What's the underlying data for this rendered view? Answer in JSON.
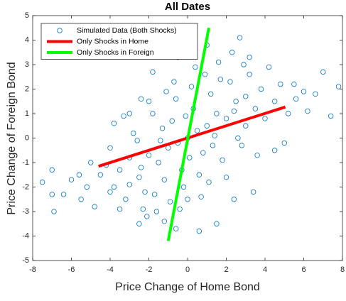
{
  "chart_data": {
    "type": "scatter",
    "title": "All Dates",
    "xlabel": "Price Change of Home Bond",
    "ylabel": "Price Change of Foreign Bond",
    "xlim": [
      -8,
      8
    ],
    "ylim": [
      -5,
      5
    ],
    "xticks": [
      -8,
      -6,
      -4,
      -2,
      0,
      2,
      4,
      6,
      8
    ],
    "yticks": [
      -5,
      -4,
      -3,
      -2,
      -1,
      0,
      1,
      2,
      3,
      4,
      5
    ],
    "grid": false,
    "legend": "northwest",
    "series": [
      {
        "name": "Simulated Data (Both Shocks)",
        "type": "scatter",
        "color": "#0072bd",
        "x": [
          0,
          0.5,
          -0.5,
          1,
          -1,
          1.5,
          -1.5,
          2,
          -2,
          0.3,
          -0.3,
          0.8,
          -0.8,
          1.2,
          -1.2,
          2.5,
          -2.5,
          3,
          -3,
          0.2,
          -0.2,
          1.8,
          -1.8,
          2.2,
          -2.2,
          3.5,
          -3.5,
          0.6,
          -0.6,
          1.4,
          -1.4,
          2.8,
          -2.8,
          0.9,
          -0.9,
          3.8,
          -3.8,
          1.1,
          -1.1,
          4.0,
          -4.2,
          2.0,
          -2.0,
          0.4,
          -0.4,
          3.2,
          -3.2,
          1.7,
          -1.7,
          4.5,
          -4.5,
          2.6,
          -2.6,
          0.1,
          -0.1,
          1.3,
          -1.3,
          2.4,
          -2.4,
          3.0,
          -3.0,
          5.2,
          -5.0,
          4.8,
          -4.0,
          1.6,
          -1.6,
          3.6,
          -3.3,
          0.7,
          -0.7,
          2.9,
          -2.3,
          5.6,
          -5.2,
          7.4,
          7.0,
          7.8,
          6.6,
          6.0,
          5.5,
          6.2,
          -7.5,
          -7.0,
          -7.0,
          -6.9,
          -6.4,
          -6.0,
          -5.5,
          -5.6,
          -4.8,
          -4.0,
          -3.8,
          -3.0,
          -2.4,
          -1.8,
          -0.5,
          1.0,
          2.3,
          2.7,
          3.2,
          4.2,
          1.5,
          0.6,
          -0.6,
          -1.2,
          -2.5,
          -2.1,
          2.4,
          3.4,
          4.5,
          5.0,
          0,
          -3.5
        ],
        "values": [
          0,
          0.3,
          -0.2,
          0.5,
          -0.4,
          1,
          -1,
          0.8,
          -0.7,
          1.2,
          -1.3,
          -0.6,
          0.7,
          1.8,
          -1.7,
          1.5,
          -1.6,
          0.5,
          -0.8,
          2.1,
          -2.0,
          -0.9,
          1.0,
          2.3,
          -2.2,
          1.2,
          -1.3,
          -1.5,
          1.6,
          0.1,
          -0.1,
          -0.3,
          0.2,
          2.6,
          -2.6,
          2.0,
          -2.0,
          -1.8,
          1.9,
          0.8,
          -1.1,
          -1.6,
          1.5,
          2.9,
          -2.9,
          2.6,
          -2.5,
          2.4,
          -2.3,
          1.5,
          -1.5,
          0.0,
          -0.1,
          -0.8,
          0.9,
          -0.3,
          0.4,
          1.1,
          -1.2,
          1.7,
          -1.9,
          1.0,
          -1.0,
          2.2,
          -2.2,
          3.1,
          -3.0,
          -0.7,
          0.9,
          -2.4,
          2.3,
          3.0,
          -2.9,
          1.6,
          -2.0,
          0.9,
          2.7,
          2.1,
          1.8,
          1.9,
          2.2,
          1.1,
          -1.8,
          -1.3,
          -2.3,
          -3.0,
          -2.3,
          -1.7,
          -2.5,
          -1.5,
          -2.8,
          -0.4,
          0.6,
          1.0,
          1.6,
          2.7,
          3.3,
          3.8,
          3.5,
          4.1,
          3.3,
          2.9,
          -3.5,
          -3.8,
          -3.7,
          -3.4,
          -3.5,
          -3.2,
          -2.5,
          -2.2,
          -0.5,
          -0.2,
          -2.5,
          -2.9
        ]
      },
      {
        "name": "Only Shocks in Home",
        "type": "line",
        "color": "#ff0000",
        "x": [
          -4.6,
          5.05
        ],
        "values": [
          -1.15,
          1.27
        ]
      },
      {
        "name": "Only Shocks in Foreign",
        "type": "line",
        "color": "#00ff00",
        "x": [
          -1.0,
          1.1
        ],
        "values": [
          -4.2,
          4.5
        ]
      }
    ]
  }
}
